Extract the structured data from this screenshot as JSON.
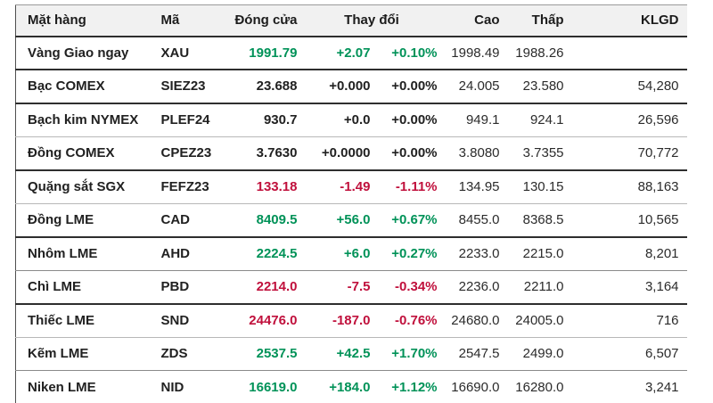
{
  "table": {
    "headers": {
      "name": "Mặt hàng",
      "code": "Mã",
      "close": "Đóng cửa",
      "change": "Thay đổi",
      "high": "Cao",
      "low": "Thấp",
      "volume": "KLGD"
    },
    "colors": {
      "up": "#009258",
      "down": "#c0103c",
      "neutral": "#212121",
      "header_bg": "#f1f1f1"
    },
    "rows": [
      {
        "name": "Vàng Giao ngay",
        "code": "XAU",
        "close": "1991.79",
        "change": "+2.07",
        "change_pct": "+0.10%",
        "high": "1998.49",
        "low": "1988.26",
        "volume": "",
        "trend": "up"
      },
      {
        "name": "Bạc COMEX",
        "code": "SIEZ23",
        "close": "23.688",
        "change": "+0.000",
        "change_pct": "+0.00%",
        "high": "24.005",
        "low": "23.580",
        "volume": "54,280",
        "trend": "flat"
      },
      {
        "name": "Bạch kim NYMEX",
        "code": "PLEF24",
        "close": "930.7",
        "change": "+0.0",
        "change_pct": "+0.00%",
        "high": "949.1",
        "low": "924.1",
        "volume": "26,596",
        "trend": "flat"
      },
      {
        "name": "Đồng COMEX",
        "code": "CPEZ23",
        "close": "3.7630",
        "change": "+0.0000",
        "change_pct": "+0.00%",
        "high": "3.8080",
        "low": "3.7355",
        "volume": "70,772",
        "trend": "flat"
      },
      {
        "name": "Quặng sắt SGX",
        "code": "FEFZ23",
        "close": "133.18",
        "change": "-1.49",
        "change_pct": "-1.11%",
        "high": "134.95",
        "low": "130.15",
        "volume": "88,163",
        "trend": "down"
      },
      {
        "name": "Đồng LME",
        "code": "CAD",
        "close": "8409.5",
        "change": "+56.0",
        "change_pct": "+0.67%",
        "high": "8455.0",
        "low": "8368.5",
        "volume": "10,565",
        "trend": "up"
      },
      {
        "name": "Nhôm LME",
        "code": "AHD",
        "close": "2224.5",
        "change": "+6.0",
        "change_pct": "+0.27%",
        "high": "2233.0",
        "low": "2215.0",
        "volume": "8,201",
        "trend": "up"
      },
      {
        "name": "Chì LME",
        "code": "PBD",
        "close": "2214.0",
        "change": "-7.5",
        "change_pct": "-0.34%",
        "high": "2236.0",
        "low": "2211.0",
        "volume": "3,164",
        "trend": "down"
      },
      {
        "name": "Thiếc LME",
        "code": "SND",
        "close": "24476.0",
        "change": "-187.0",
        "change_pct": "-0.76%",
        "high": "24680.0",
        "low": "24005.0",
        "volume": "716",
        "trend": "down"
      },
      {
        "name": "Kẽm LME",
        "code": "ZDS",
        "close": "2537.5",
        "change": "+42.5",
        "change_pct": "+1.70%",
        "high": "2547.5",
        "low": "2499.0",
        "volume": "6,507",
        "trend": "up"
      },
      {
        "name": "Niken LME",
        "code": "NID",
        "close": "16619.0",
        "change": "+184.0",
        "change_pct": "+1.12%",
        "high": "16690.0",
        "low": "16280.0",
        "volume": "3,241",
        "trend": "up"
      }
    ]
  }
}
